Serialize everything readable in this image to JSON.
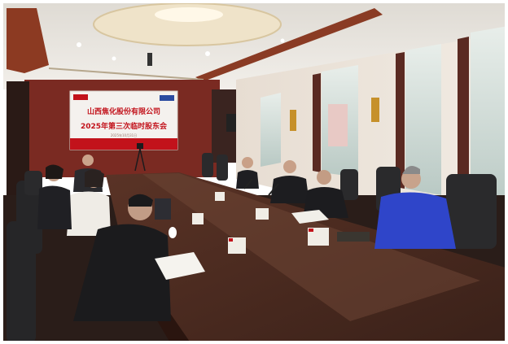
{
  "screen": {
    "line1": "山西焦化股份有限公司",
    "line2": "2025年第三次临时股东会",
    "line3": "2025年10月31日"
  },
  "colors": {
    "ceiling": "#e9e6e0",
    "wood_panel": "#7a2a22",
    "table": "#4a2b20",
    "chair": "#2a2a2c",
    "screen_bg": "#f4f1ee",
    "screen_accent": "#c2121b",
    "window_light": "#d8e4e0",
    "blue_jacket": "#2f45c9"
  },
  "icons": [
    "ceiling-light-icon",
    "camera-tripod-icon",
    "microphone-icon"
  ]
}
